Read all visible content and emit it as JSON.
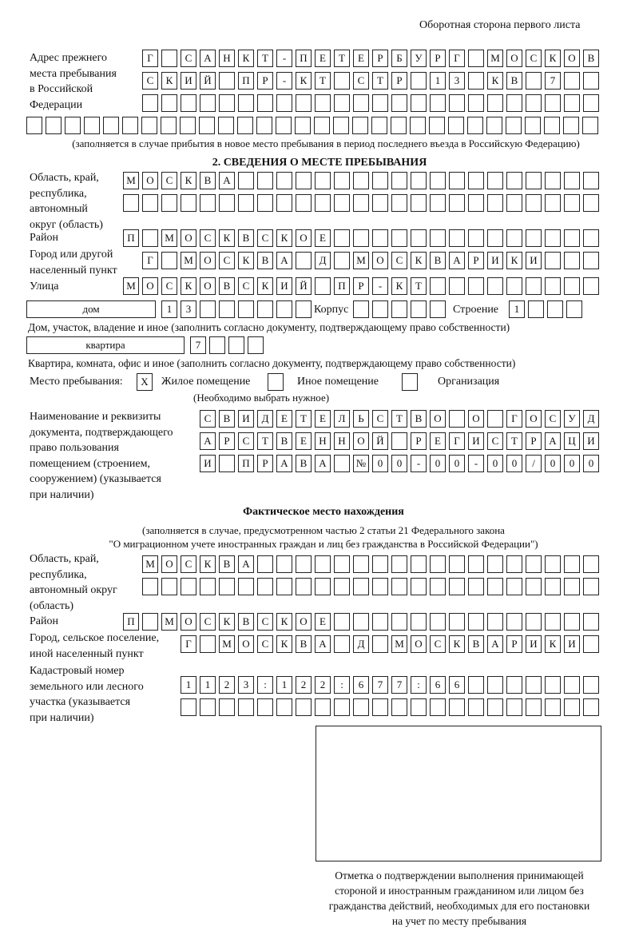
{
  "header": "Оборотная сторона первого листа",
  "prev_address": {
    "label": [
      "Адрес прежнего",
      "места пребывания",
      "в Российской",
      "Федерации"
    ],
    "rows": [
      "Г САНКТ-ПЕТЕРБУРГ МОСКОВ",
      "СКИЙ ПР-КТ СТР 13 КВ 7",
      "",
      ""
    ],
    "note": "(заполняется в случае прибытия в новое место пребывания в период последнего въезда в Российскую Федерацию)"
  },
  "section2": {
    "title": "2. СВЕДЕНИЯ О МЕСТЕ ПРЕБЫВАНИЯ",
    "region_label": [
      "Область, край,",
      "республика,",
      "автономный",
      "округ (область)"
    ],
    "region_rows": [
      "МОСКВА",
      ""
    ],
    "district_label": "Район",
    "district": "П МОСКВСКОЕ",
    "city_label": [
      "Город или другой",
      "населенный пункт"
    ],
    "city": "Г МОСКВА Д МОСКВАРИКИ",
    "street_label": "Улица",
    "street": "МОСКОВСКИЙ ПР-КТ",
    "house_type": "дом",
    "house": "13",
    "korpus_label": "Корпус",
    "korpus": "",
    "stroenie_label": "Строение",
    "stroenie": "1",
    "house_note": "Дом, участок, владение и иное (заполнить согласно документу, подтверждающему право собственности)",
    "apt_type": "квартира",
    "apt": "7",
    "apt_note": "Квартира, комната, офис и иное (заполнить согласно документу, подтверждающему право собственности)",
    "stay_label": "Место пребывания:",
    "stay_options": [
      {
        "label": "Жилое помещение",
        "mark": "X"
      },
      {
        "label": "Иное помещение",
        "mark": ""
      },
      {
        "label": "Организация",
        "mark": ""
      }
    ],
    "stay_note": "(Необходимо выбрать нужное)",
    "doc_label": [
      "Наименование и реквизиты",
      "документа, подтверждающего",
      "право пользования",
      "помещением (строением,",
      "сооружением) (указывается",
      "при наличии)"
    ],
    "doc_rows": [
      "СВИДЕТЕЛЬСТВО О ГОСУД",
      "АРСТВЕННОЙ РЕГИСТРАЦИ",
      "И ПРАВА №00-00-00/000"
    ]
  },
  "actual": {
    "title": "Фактическое место нахождения",
    "note": [
      "(заполняется в случае, предусмотренном частью 2 статьи 21 Федерального закона",
      "\"О миграционном учете иностранных граждан и лиц без гражданства в Российской Федерации\")"
    ],
    "region_label": [
      "Область, край,",
      "республика,",
      "автономный округ",
      "(область)"
    ],
    "region_rows": [
      "МОСКВА",
      ""
    ],
    "district_label": "Район",
    "district": "П МОСКВСКОЕ",
    "city_label": [
      "Город, сельское поселение,",
      "иной населенный пункт"
    ],
    "city": "Г МОСКВА Д МОСКВАРИКИ",
    "cadastre_label": [
      "Кадастровый номер",
      "земельного или лесного",
      "участка (указывается",
      "при наличии)"
    ],
    "cadastre_rows": [
      "1123:122:677:66",
      ""
    ]
  },
  "stamp_caption": [
    "Отметка о подтверждении выполнения принимающей",
    "стороной и иностранным гражданином или лицом без",
    "гражданства действий, необходимых для его постановки",
    "на учет по месту пребывания"
  ]
}
